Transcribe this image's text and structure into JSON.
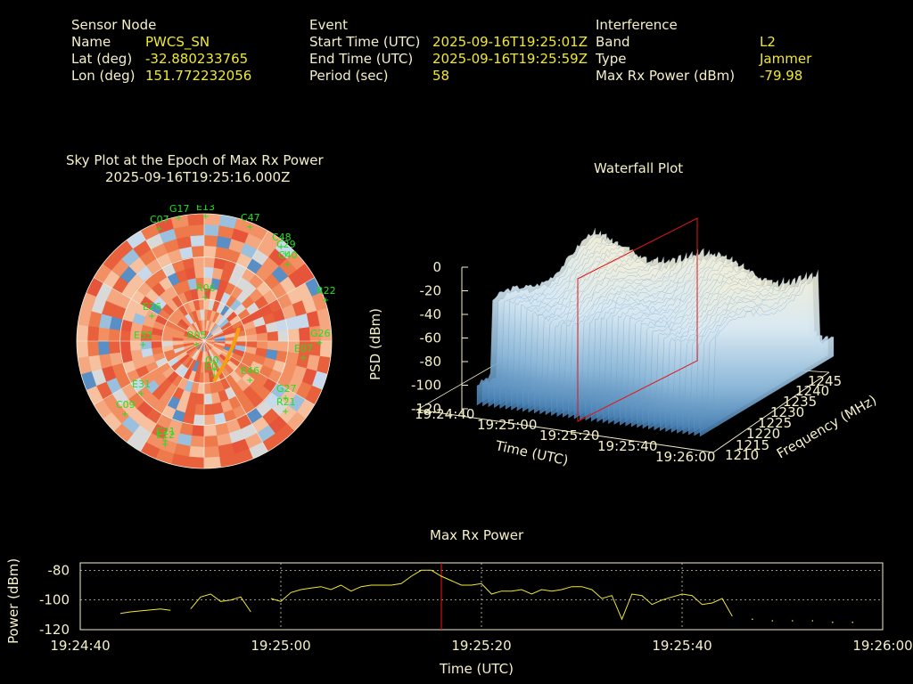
{
  "info": {
    "sensor": {
      "heading": "Sensor Node",
      "name_label": "Name",
      "name_value": "PWCS_SN",
      "lat_label": "Lat (deg)",
      "lat_value": "-32.880233765",
      "lon_label": "Lon (deg)",
      "lon_value": "151.772232056"
    },
    "event": {
      "heading": "Event",
      "start_label": "Start Time (UTC)",
      "start_value": "2025-09-16T19:25:01Z",
      "end_label": "End Time (UTC)",
      "end_value": "2025-09-16T19:25:59Z",
      "period_label": "Period (sec)",
      "period_value": "58"
    },
    "interference": {
      "heading": "Interference",
      "band_label": "Band",
      "band_value": "L2",
      "type_label": "Type",
      "type_value": "Jammer",
      "power_label": "Max Rx Power (dBm)",
      "power_value": "-79.98"
    }
  },
  "skyplot": {
    "title_line1": "Sky Plot at the Epoch of Max Rx Power",
    "title_line2": "2025-09-16T19:25:16.000Z",
    "satellites": [
      "C07",
      "G17",
      "E13",
      "C47",
      "R05",
      "E0",
      "G0",
      "E46",
      "R21",
      "G26",
      "C21",
      "E12",
      "C09",
      "E31",
      "E33",
      "E26",
      "R06",
      "C29",
      "E07",
      "G27",
      "R22",
      "C40",
      "C48"
    ]
  },
  "waterfall": {
    "title": "Waterfall Plot",
    "zlabel": "PSD (dBm)",
    "xlabel": "Time (UTC)",
    "ylabel": "Frequency (MHz)",
    "zticks": [
      "0",
      "-20",
      "-40",
      "-60",
      "-80",
      "-100",
      "-120"
    ],
    "xticks": [
      "19:24:40",
      "19:25:00",
      "19:25:20",
      "19:25:40",
      "19:26:00"
    ],
    "yticks": [
      "1210",
      "1215",
      "1220",
      "1225",
      "1230",
      "1235",
      "1240",
      "1245"
    ]
  },
  "power_chart": {
    "title": "Max Rx Power",
    "ylabel": "Power (dBm)",
    "xlabel": "Time (UTC)",
    "yticks": [
      "-80",
      "-100",
      "-120"
    ],
    "xticks": [
      "19:24:40",
      "19:25:00",
      "19:25:20",
      "19:25:40",
      "19:26:00"
    ]
  },
  "chart_data": [
    {
      "type": "line",
      "title": "Max Rx Power",
      "xlabel": "Time (UTC)",
      "ylabel": "Power (dBm)",
      "ylim": [
        -120,
        -75
      ],
      "xlim": [
        "19:24:40",
        "19:26:00"
      ],
      "grid": true,
      "marker_time": "19:25:16",
      "x": [
        44,
        45,
        48,
        49,
        50,
        51,
        52,
        53,
        54,
        55,
        56,
        57,
        58,
        59,
        60,
        61,
        62,
        63,
        64,
        65,
        66,
        67,
        68,
        69,
        70,
        71,
        72,
        73,
        74,
        75,
        76,
        77,
        78,
        79,
        80,
        81,
        82,
        83,
        84,
        85,
        86,
        87,
        88,
        89,
        90,
        91,
        92,
        93,
        94,
        95,
        96,
        97,
        98,
        99,
        100,
        101,
        102,
        103,
        104,
        105,
        106,
        107,
        108,
        109,
        110,
        111,
        112,
        113,
        114,
        115,
        116,
        117,
        118
      ],
      "y": [
        -109,
        -108,
        -106,
        -107,
        null,
        -106,
        -98,
        -96,
        -101,
        -100,
        -98,
        -108,
        null,
        -99,
        -101,
        -95,
        -93,
        -92,
        -91,
        -93,
        -90,
        -94,
        -91,
        -90,
        -90,
        -90,
        -89,
        -84,
        -80,
        -80,
        -84,
        -87,
        -90,
        -90,
        -89,
        -96,
        -94,
        -94,
        -93,
        -96,
        -93,
        -94,
        -93,
        -91,
        -91,
        -93,
        -99,
        -97,
        -113,
        -96,
        -97,
        -103,
        -100,
        -98,
        -96,
        -97,
        -103,
        -102,
        -99,
        -111,
        null,
        -113,
        null,
        -114,
        null,
        -114,
        null,
        -114,
        null,
        -115,
        null,
        -115,
        null
      ]
    },
    {
      "type": "heatmap",
      "title": "Waterfall Plot",
      "xlabel": "Time (UTC)",
      "ylabel": "Frequency (MHz)",
      "zlabel": "PSD (dBm)",
      "x_range": [
        "19:24:40",
        "19:26:00"
      ],
      "y_range": [
        1210,
        1245
      ],
      "z_range": [
        -120,
        0
      ]
    }
  ]
}
